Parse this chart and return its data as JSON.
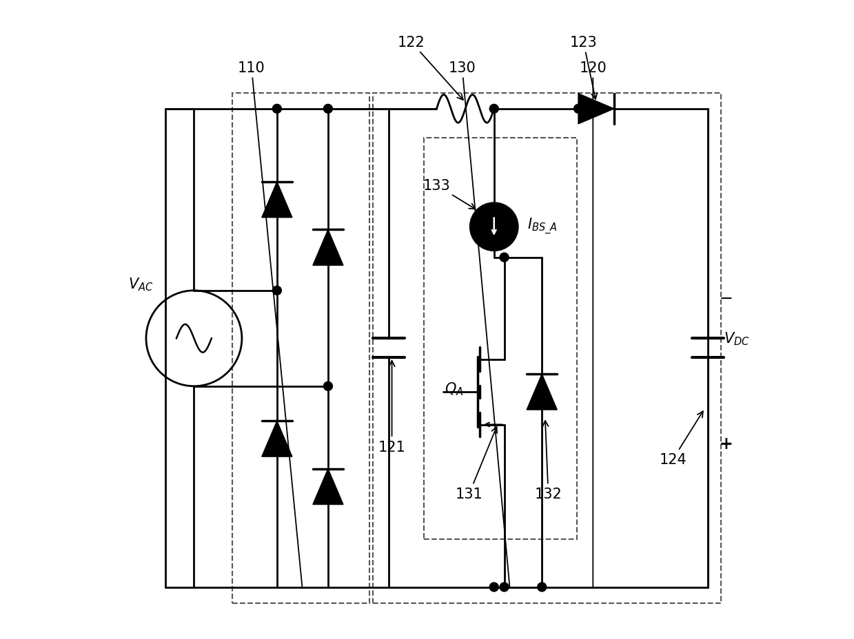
{
  "background_color": "#ffffff",
  "line_color": "#000000",
  "line_width": 2.0,
  "dashed_color": "#555555",
  "fig_width": 12.39,
  "fig_height": 9.29
}
